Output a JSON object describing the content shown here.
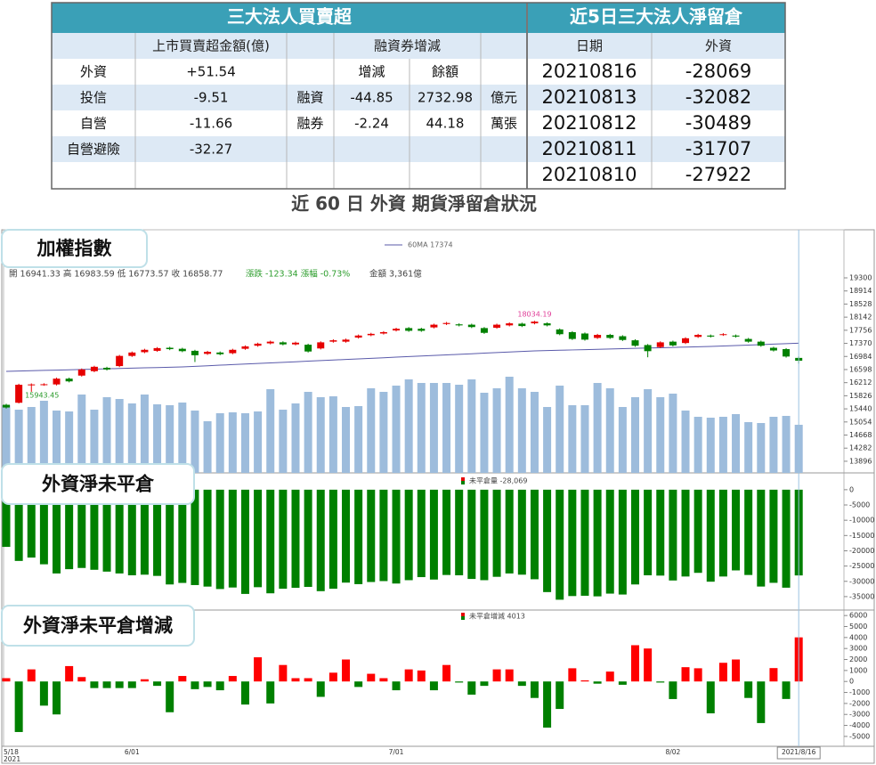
{
  "table": {
    "header": [
      "三大法人買賣超",
      "近5日三大法人淨留倉"
    ],
    "subheader": [
      null,
      "上市買賣超金額(億)",
      null,
      "融資券增減",
      null,
      null,
      "日期",
      "外資"
    ],
    "rows": [
      [
        "外資",
        "+51.54",
        null,
        "增減",
        "餘額",
        null,
        "20210816",
        "-28069"
      ],
      [
        "投信",
        "-9.51",
        "融資",
        "-44.85",
        "2732.98",
        "億元",
        "20210813",
        "-32082"
      ],
      [
        "自營",
        "-11.66",
        "融券",
        "-2.24",
        "44.18",
        "萬張",
        "20210812",
        "-30489"
      ],
      [
        "自營避險",
        "-32.27",
        null,
        null,
        null,
        null,
        "20210811",
        "-31707"
      ],
      [
        null,
        null,
        null,
        null,
        null,
        null,
        "20210810",
        "-27922"
      ]
    ]
  },
  "subtitle": "近 60 日 外資 期貨淨留倉狀況",
  "chart_data": [
    {
      "type": "candlestick",
      "title": "加權指數",
      "ylim": [
        13553,
        20717
      ],
      "yticks": [
        13896,
        14282,
        14668,
        15054,
        15440,
        15826,
        16212,
        16598,
        16984,
        17370,
        17756,
        18142,
        18528,
        18914,
        19300
      ],
      "up_color": "#e60000",
      "down_color": "#008000",
      "open": [
        15560,
        15620,
        16150,
        16150,
        16160,
        16330,
        16420,
        16550,
        16650,
        16700,
        17000,
        17110,
        17150,
        17240,
        17210,
        17150,
        17060,
        17100,
        17080,
        17210,
        17300,
        17370,
        17400,
        17340,
        17330,
        17220,
        17420,
        17420,
        17540,
        17610,
        17660,
        17750,
        17820,
        17800,
        17840,
        17940,
        17930,
        17920,
        17820,
        17830,
        17900,
        17950,
        17960,
        17960,
        17780,
        17700,
        17660,
        17530,
        17620,
        17580,
        17460,
        17320,
        17260,
        17420,
        17380,
        17560,
        17600,
        17620,
        17600,
        17500,
        17420,
        17240,
        17200,
        16941.33
      ],
      "high": [
        15590,
        16180,
        16190,
        16195,
        16360,
        16360,
        16630,
        16710,
        16680,
        17030,
        17130,
        17210,
        17260,
        17270,
        17240,
        17180,
        17150,
        17130,
        17210,
        17310,
        17390,
        17450,
        17430,
        17420,
        17360,
        17430,
        17490,
        17510,
        17630,
        17680,
        17730,
        17830,
        17850,
        17830,
        17950,
        18000,
        17960,
        17950,
        17850,
        17950,
        17990,
        17980,
        18034.19,
        17990,
        17810,
        17730,
        17690,
        17650,
        17650,
        17610,
        17490,
        17350,
        17430,
        17450,
        17550,
        17650,
        17630,
        17670,
        17630,
        17530,
        17450,
        17270,
        17230,
        16983.59
      ],
      "low": [
        15450,
        15600,
        15943.45,
        16120,
        16130,
        16220,
        16390,
        16520,
        16570,
        16670,
        16970,
        17080,
        17120,
        17170,
        17110,
        16820,
        17030,
        17020,
        17050,
        17180,
        17270,
        17340,
        17310,
        17310,
        17100,
        17190,
        17390,
        17390,
        17510,
        17580,
        17630,
        17720,
        17710,
        17710,
        17810,
        17910,
        17870,
        17820,
        17650,
        17800,
        17870,
        17850,
        17930,
        17870,
        17610,
        17470,
        17450,
        17500,
        17500,
        17440,
        17270,
        16960,
        17230,
        17280,
        17350,
        17530,
        17540,
        17590,
        17540,
        17390,
        17270,
        17130,
        16950,
        16773.57
      ],
      "close": [
        15480,
        16150,
        16160,
        16165,
        16330,
        16250,
        16600,
        16680,
        16600,
        17000,
        17100,
        17180,
        17230,
        17200,
        17140,
        17020,
        17120,
        17050,
        17180,
        17280,
        17360,
        17420,
        17340,
        17390,
        17130,
        17400,
        17460,
        17480,
        17600,
        17650,
        17700,
        17800,
        17740,
        17740,
        17920,
        17970,
        17900,
        17850,
        17680,
        17920,
        17960,
        17880,
        18010,
        17900,
        17640,
        17500,
        17480,
        17620,
        17530,
        17470,
        17300,
        17140,
        17400,
        17310,
        17520,
        17620,
        17570,
        17640,
        17570,
        17420,
        17300,
        17160,
        16982.11,
        16858.77
      ],
      "high_labels": [
        null,
        null,
        null,
        null,
        null,
        null,
        null,
        null,
        null,
        null,
        null,
        null,
        null,
        null,
        null,
        null,
        null,
        null,
        null,
        null,
        null,
        null,
        null,
        null,
        null,
        null,
        null,
        null,
        null,
        null,
        null,
        null,
        null,
        null,
        null,
        null,
        null,
        null,
        null,
        null,
        null,
        null,
        "18034.19",
        null,
        null,
        null,
        null,
        null,
        null,
        null,
        null,
        null,
        null,
        null,
        null,
        null,
        null,
        null,
        null,
        null,
        null,
        null,
        null,
        null
      ],
      "low_labels": [
        null,
        null,
        "15943.45",
        null,
        null,
        null,
        null,
        null,
        null,
        null,
        null,
        null,
        null,
        null,
        null,
        null,
        null,
        null,
        null,
        null,
        null,
        null,
        null,
        null,
        null,
        null,
        null,
        null,
        null,
        null,
        null,
        null,
        null,
        null,
        null,
        null,
        null,
        null,
        null,
        null,
        null,
        null,
        null,
        null,
        null,
        null,
        null,
        null,
        null,
        null,
        null,
        null,
        null,
        null,
        null,
        null,
        null,
        null,
        null,
        null,
        null,
        null,
        null,
        null
      ],
      "volume": {
        "color": "#9dbcdc",
        "values": [
          4727,
          4416,
          4603,
          5038,
          4354,
          4292,
          5474,
          4416,
          5287,
          5163,
          4852,
          5474,
          4789,
          4727,
          4914,
          4354,
          3608,
          4167,
          4230,
          4167,
          4292,
          5847,
          4416,
          4852,
          5660,
          5287,
          5349,
          4603,
          4665,
          5909,
          5660,
          6096,
          6531,
          6282,
          6282,
          6282,
          6158,
          6531,
          5598,
          5909,
          6718,
          5909,
          5660,
          4603,
          6096,
          4727,
          4727,
          6282,
          5909,
          4603,
          5287,
          5847,
          5287,
          5536,
          4354,
          3919,
          3856,
          3919,
          4105,
          3545,
          3483,
          3919,
          3981,
          3361
        ]
      },
      "series": [
        {
          "name": "60MA 17374",
          "color": "#5a5aaa",
          "values": [
            16545,
            16554,
            16564,
            16573,
            16582,
            16592,
            16601,
            16611,
            16620,
            16629,
            16639,
            16648,
            16657,
            16667,
            16676,
            16693,
            16710,
            16727,
            16744,
            16761,
            16777,
            16794,
            16811,
            16828,
            16845,
            16862,
            16879,
            16895,
            16912,
            16929,
            16946,
            16963,
            16980,
            16996,
            17013,
            17030,
            17047,
            17064,
            17081,
            17098,
            17114,
            17131,
            17148,
            17157,
            17167,
            17176,
            17185,
            17195,
            17204,
            17213,
            17223,
            17232,
            17241,
            17251,
            17260,
            17269,
            17279,
            17293,
            17306,
            17320,
            17333,
            17347,
            17361,
            17374
          ]
        }
      ],
      "info": [
        "開 16941.33  高 16983.59  低 16773.57  收 16858.77",
        "漲跌 -123.34  漲幅  -0.73%",
        "金額 3,361億"
      ],
      "info_colors": [
        "#444444",
        "#2e9e2e",
        "#444444"
      ]
    },
    {
      "type": "bar",
      "title": "外資淨未平倉",
      "ylim": [
        -39400,
        5500
      ],
      "yticks": [
        0,
        -5000,
        -10000,
        -15000,
        -20000,
        -25000,
        -30000,
        -35000
      ],
      "series": [
        {
          "name": "未平倉量 -28,069",
          "color": "#008000",
          "values": [
            -18722,
            -23322,
            -22222,
            -24422,
            -27422,
            -26022,
            -25622,
            -26222,
            -26822,
            -27422,
            -28022,
            -27822,
            -28222,
            -31022,
            -30522,
            -31222,
            -31722,
            -32522,
            -32022,
            -34122,
            -31922,
            -33922,
            -32422,
            -32122,
            -31822,
            -33222,
            -32422,
            -30422,
            -30922,
            -30222,
            -29922,
            -30722,
            -29622,
            -28622,
            -29422,
            -27922,
            -28022,
            -29222,
            -29622,
            -28522,
            -27422,
            -27822,
            -29322,
            -33522,
            -36022,
            -34822,
            -34722,
            -34922,
            -34022,
            -34322,
            -31022,
            -28022,
            -28122,
            -29722,
            -28422,
            -27222,
            -30122,
            -28422,
            -26422,
            -27922,
            -31707,
            -30489,
            -32082,
            -28069
          ]
        }
      ]
    },
    {
      "type": "bar",
      "title": "外資淨未平倉增減",
      "ylim": [
        -5900,
        6500
      ],
      "yticks": [
        6000,
        5000,
        4000,
        3000,
        2000,
        1000,
        0,
        -1000,
        -2000,
        -3000,
        -4000,
        -5000
      ],
      "up_color": "#ff0000",
      "categories": [
        "5/18",
        null,
        null,
        null,
        null,
        null,
        null,
        null,
        null,
        null,
        "6/01",
        null,
        null,
        null,
        null,
        null,
        null,
        null,
        null,
        null,
        null,
        null,
        null,
        null,
        null,
        null,
        null,
        null,
        null,
        null,
        null,
        "7/01",
        null,
        null,
        null,
        null,
        null,
        null,
        null,
        null,
        null,
        null,
        null,
        null,
        null,
        null,
        null,
        null,
        null,
        null,
        null,
        null,
        null,
        "8/02",
        null,
        null,
        null,
        null,
        null,
        null,
        null,
        null,
        null,
        "2021/8/16"
      ],
      "x_sublabel": "2021",
      "series": [
        {
          "name": "未平倉增減 4013",
          "color": "#008000",
          "values": [
            300,
            -4600,
            1100,
            -2200,
            -3000,
            1400,
            400,
            -600,
            -600,
            -600,
            -600,
            200,
            -400,
            -2800,
            500,
            -700,
            -500,
            -800,
            500,
            -2100,
            2200,
            -2000,
            1500,
            300,
            300,
            -1400,
            800,
            2000,
            -500,
            700,
            300,
            -800,
            1100,
            1000,
            -800,
            1500,
            -100,
            -1200,
            -400,
            1100,
            1100,
            -400,
            -1500,
            -4200,
            -2500,
            1200,
            100,
            -200,
            900,
            -300,
            3300,
            3000,
            -100,
            -1600,
            1300,
            1200,
            -2900,
            1700,
            2000,
            -1500,
            -3785,
            1218,
            -1593,
            4013
          ]
        }
      ]
    }
  ]
}
